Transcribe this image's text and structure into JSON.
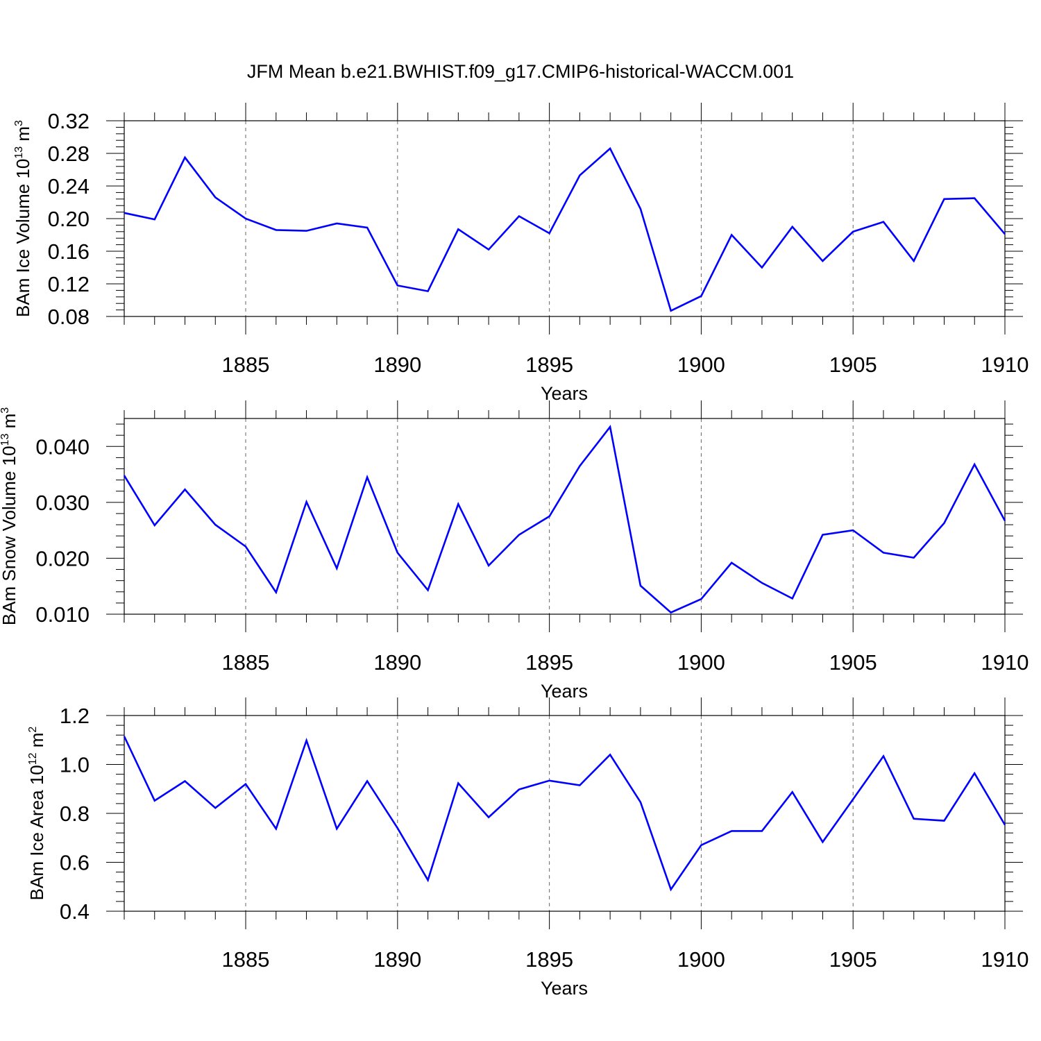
{
  "title": "JFM Mean b.e21.BWHIST.f09_g17.CMIP6-historical-WACCM.001",
  "line_color": "#0000ff",
  "chart_data": [
    {
      "type": "line",
      "ylabel": "BAm Ice Volume 10",
      "ylabel_exp": "13",
      "ylabel_unit": " m",
      "ylabel_unit_exp": "3",
      "xlabel": "Years",
      "xlim": [
        1881,
        1910
      ],
      "ylim": [
        0.08,
        0.32
      ],
      "yticks": [
        "0.08",
        "0.12",
        "0.16",
        "0.20",
        "0.24",
        "0.28",
        "0.32"
      ],
      "xticks": [
        "1885",
        "1890",
        "1895",
        "1900",
        "1905",
        "1910"
      ],
      "x": [
        1881,
        1882,
        1883,
        1884,
        1885,
        1886,
        1887,
        1888,
        1889,
        1890,
        1891,
        1892,
        1893,
        1894,
        1895,
        1896,
        1897,
        1898,
        1899,
        1900,
        1901,
        1902,
        1903,
        1904,
        1905,
        1906,
        1907,
        1908,
        1909,
        1910
      ],
      "values": [
        0.207,
        0.199,
        0.275,
        0.226,
        0.2,
        0.186,
        0.185,
        0.194,
        0.189,
        0.118,
        0.111,
        0.187,
        0.162,
        0.203,
        0.182,
        0.253,
        0.286,
        0.212,
        0.087,
        0.105,
        0.18,
        0.14,
        0.19,
        0.148,
        0.184,
        0.196,
        0.148,
        0.224,
        0.225,
        0.181
      ]
    },
    {
      "type": "line",
      "ylabel": "BAm Snow Volume 10",
      "ylabel_exp": "13",
      "ylabel_unit": " m",
      "ylabel_unit_exp": "3",
      "xlabel": "Years",
      "xlim": [
        1881,
        1910
      ],
      "ylim": [
        0.01,
        0.045
      ],
      "yticks": [
        "0.010",
        "0.020",
        "0.030",
        "0.040"
      ],
      "xticks": [
        "1885",
        "1890",
        "1895",
        "1900",
        "1905",
        "1910"
      ],
      "x": [
        1881,
        1882,
        1883,
        1884,
        1885,
        1886,
        1887,
        1888,
        1889,
        1890,
        1891,
        1892,
        1893,
        1894,
        1895,
        1896,
        1897,
        1898,
        1899,
        1900,
        1901,
        1902,
        1903,
        1904,
        1905,
        1906,
        1907,
        1908,
        1909,
        1910
      ],
      "values": [
        0.0348,
        0.0259,
        0.0323,
        0.026,
        0.0221,
        0.0139,
        0.0301,
        0.0182,
        0.0345,
        0.021,
        0.0143,
        0.0297,
        0.0187,
        0.0242,
        0.0275,
        0.0365,
        0.0435,
        0.0151,
        0.0103,
        0.0127,
        0.0192,
        0.0156,
        0.0128,
        0.0242,
        0.025,
        0.021,
        0.0201,
        0.0263,
        0.0368,
        0.0267
      ]
    },
    {
      "type": "line",
      "ylabel": "BAm Ice Area 10",
      "ylabel_exp": "12",
      "ylabel_unit": " m",
      "ylabel_unit_exp": "2",
      "xlabel": "Years",
      "xlim": [
        1881,
        1910
      ],
      "ylim": [
        0.4,
        1.2
      ],
      "yticks": [
        "0.4",
        "0.6",
        "0.8",
        "1.0",
        "1.2"
      ],
      "xticks": [
        "1885",
        "1890",
        "1895",
        "1900",
        "1905",
        "1910"
      ],
      "x": [
        1881,
        1882,
        1883,
        1884,
        1885,
        1886,
        1887,
        1888,
        1889,
        1890,
        1891,
        1892,
        1893,
        1894,
        1895,
        1896,
        1897,
        1898,
        1899,
        1900,
        1901,
        1902,
        1903,
        1904,
        1905,
        1906,
        1907,
        1908,
        1909,
        1910
      ],
      "values": [
        1.115,
        0.852,
        0.932,
        0.822,
        0.92,
        0.737,
        1.098,
        0.737,
        0.932,
        0.74,
        0.527,
        0.923,
        0.784,
        0.898,
        0.934,
        0.915,
        1.04,
        0.846,
        0.489,
        0.67,
        0.728,
        0.728,
        0.887,
        0.683,
        0.858,
        1.034,
        0.778,
        0.77,
        0.964,
        0.753
      ]
    }
  ]
}
